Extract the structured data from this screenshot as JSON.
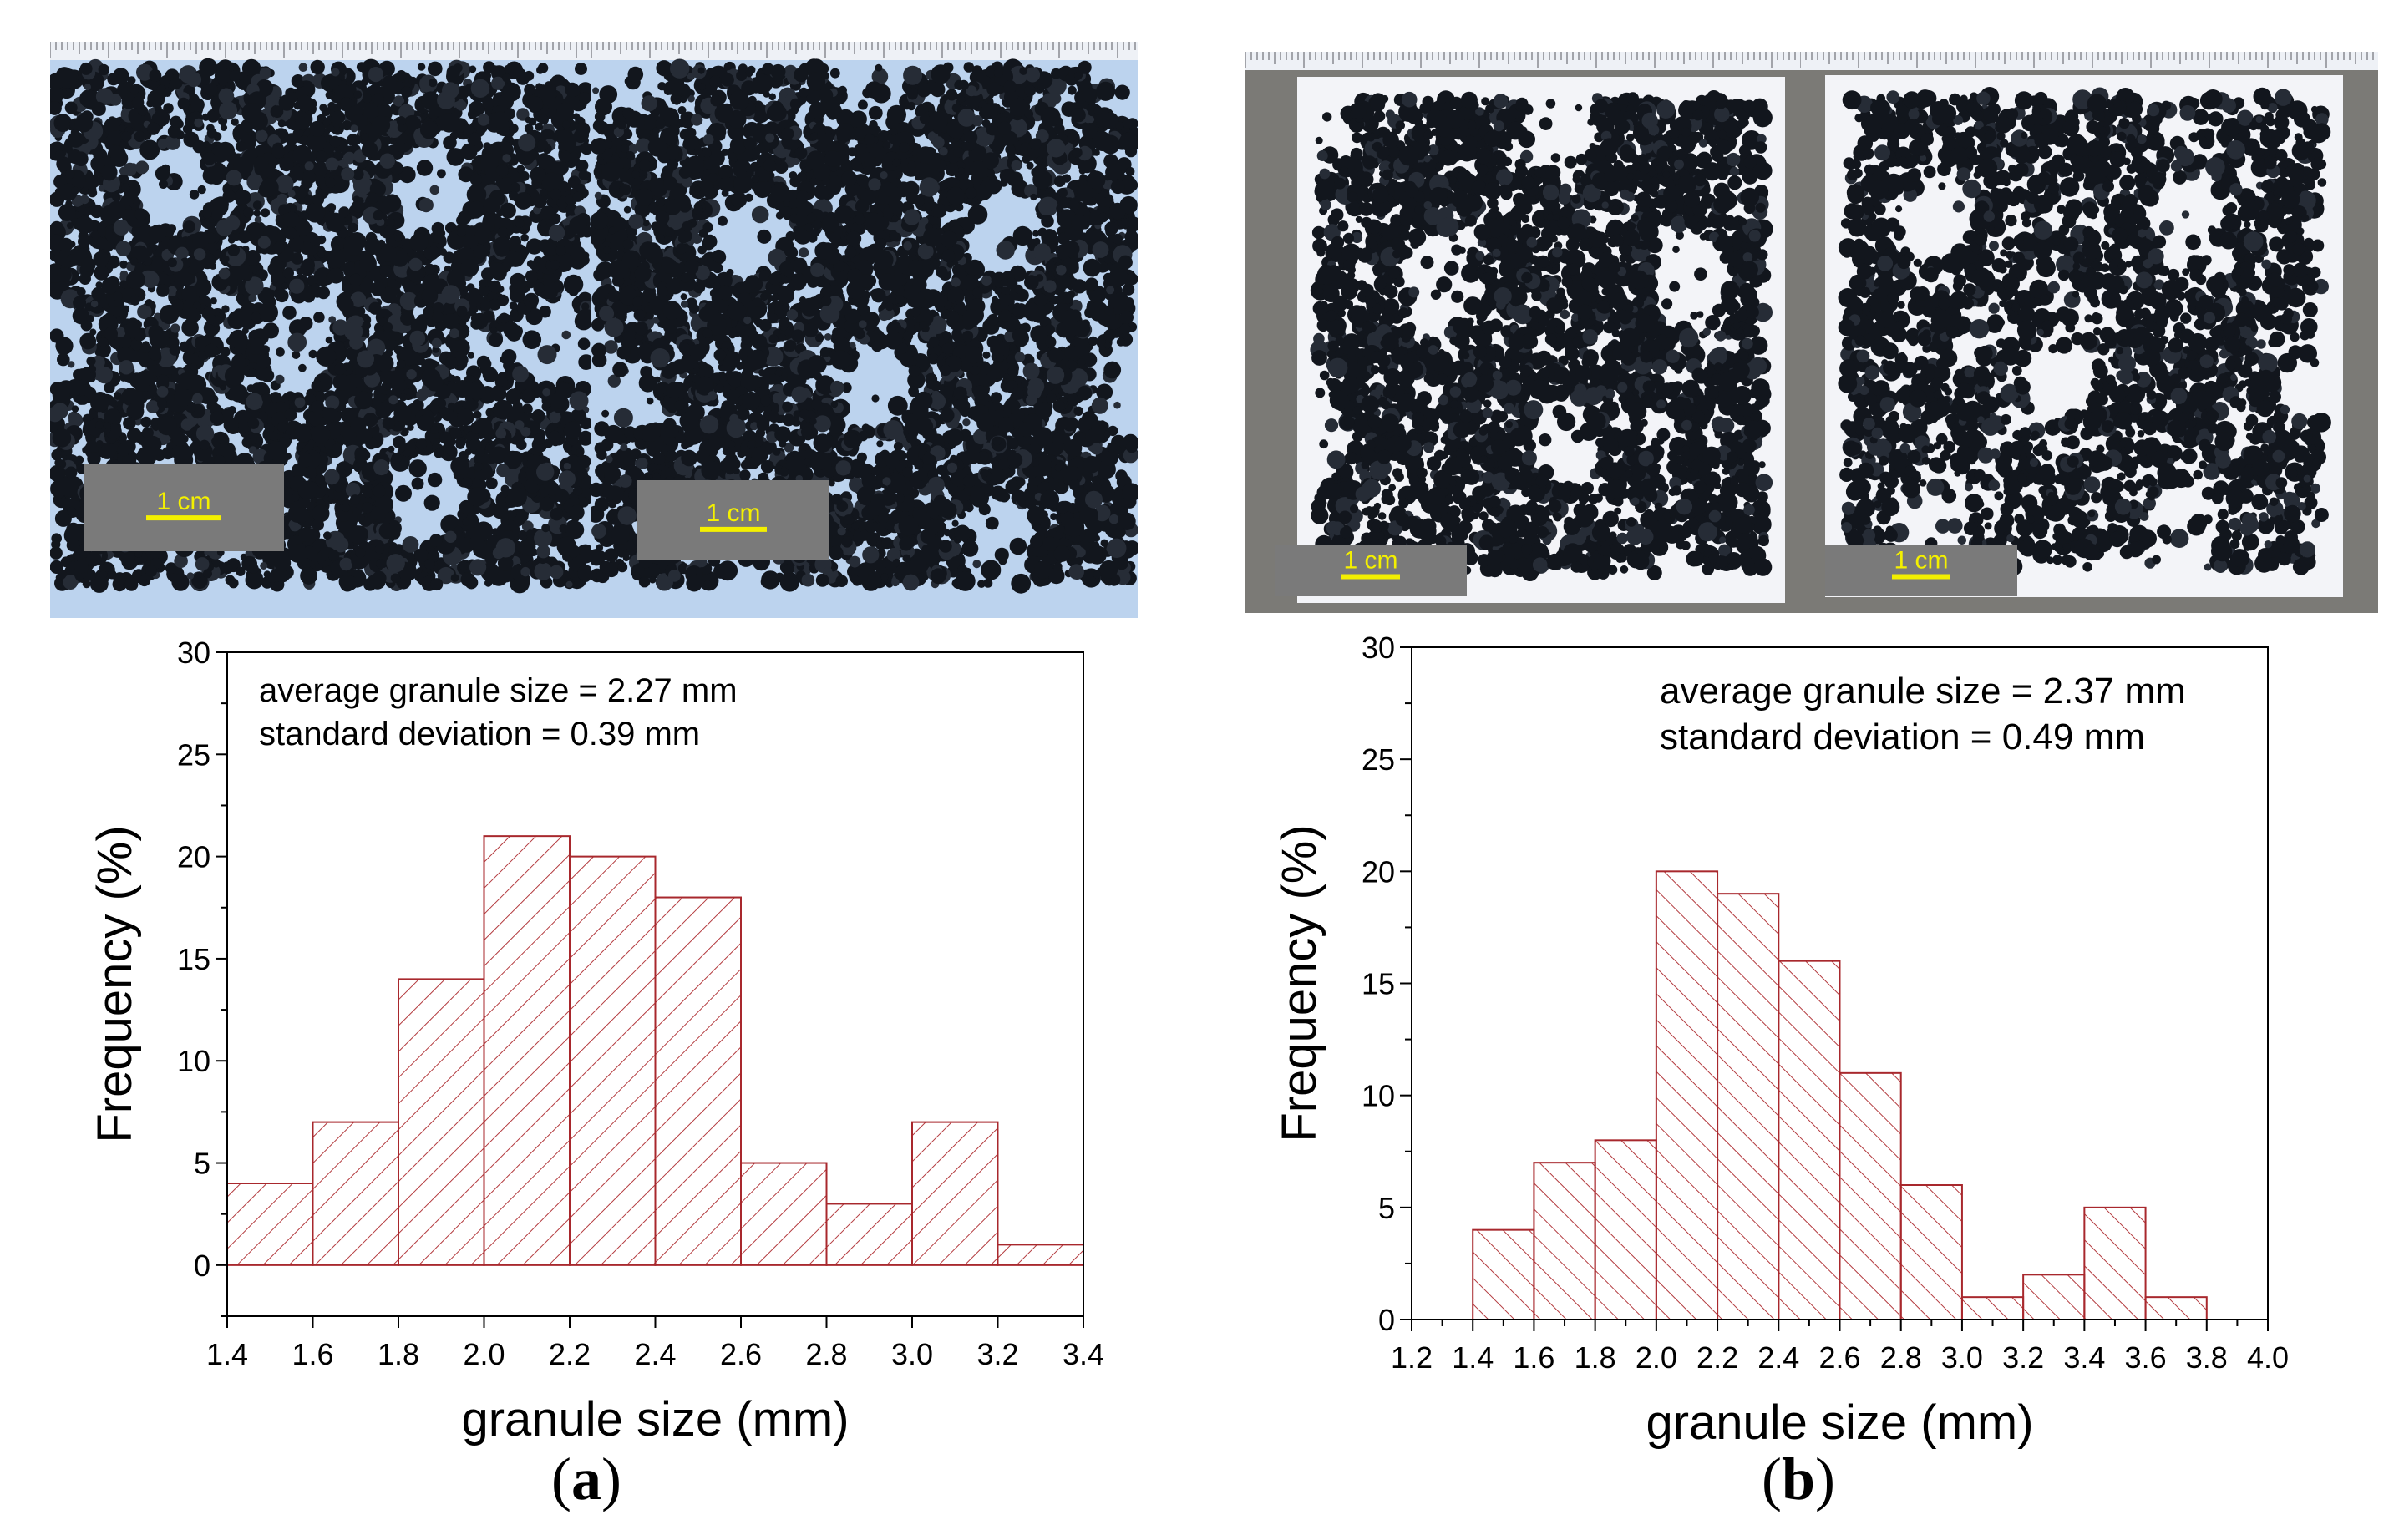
{
  "colors": {
    "bar_stroke": "#a8282d",
    "hatch": "#b33a3e",
    "axis": "#000000",
    "scalebar": "#f4f000",
    "scalebox": "#7a7a7a",
    "photo_bg_a": "#bcd3ee",
    "photo_bg_b": "#7b7a76",
    "paper": "#f3f4f8",
    "granule": "#12161d"
  },
  "panels": [
    {
      "label_open": "(",
      "label_letter": "a",
      "label_close": ")",
      "photos": [
        {
          "scale_text": "1 cm"
        },
        {
          "scale_text": "1 cm"
        }
      ],
      "annotation": [
        "average granule size = 2.27 mm",
        "standard deviation = 0.39 mm"
      ]
    },
    {
      "label_open": "(",
      "label_letter": "b",
      "label_close": ")",
      "photos": [
        {
          "scale_text": "1 cm"
        },
        {
          "scale_text": "1 cm"
        }
      ],
      "annotation": [
        "average granule size = 2.37 mm",
        "standard deviation = 0.49 mm"
      ]
    }
  ],
  "chart_data": [
    {
      "type": "bar",
      "xlabel": "granule size (mm)",
      "ylabel": "Frequency (%)",
      "xlim": [
        1.4,
        3.4
      ],
      "ylim": [
        -2.5,
        30
      ],
      "xticks": [
        "1.4",
        "1.6",
        "1.8",
        "2.0",
        "2.2",
        "2.4",
        "2.6",
        "2.8",
        "3.0",
        "3.2",
        "3.4"
      ],
      "yticks": [
        "0",
        "5",
        "10",
        "15",
        "20",
        "25",
        "30"
      ],
      "bins": [
        [
          1.4,
          1.6
        ],
        [
          1.6,
          1.8
        ],
        [
          1.8,
          2.0
        ],
        [
          2.0,
          2.2
        ],
        [
          2.2,
          2.4
        ],
        [
          2.4,
          2.6
        ],
        [
          2.6,
          2.8
        ],
        [
          2.8,
          3.0
        ],
        [
          3.0,
          3.2
        ],
        [
          3.2,
          3.4
        ]
      ],
      "values": [
        4,
        7,
        14,
        21,
        20,
        18,
        5,
        3,
        7,
        1
      ],
      "hatch": "forward",
      "grid": false
    },
    {
      "type": "bar",
      "xlabel": "granule size (mm)",
      "ylabel": "Frequency (%)",
      "xlim": [
        1.2,
        4.0
      ],
      "ylim": [
        0,
        30
      ],
      "xticks": [
        "1.2",
        "1.4",
        "1.6",
        "1.8",
        "2.0",
        "2.2",
        "2.4",
        "2.6",
        "2.8",
        "3.0",
        "3.2",
        "3.4",
        "3.6",
        "3.8",
        "4.0"
      ],
      "yticks": [
        "0",
        "5",
        "10",
        "15",
        "20",
        "25",
        "30"
      ],
      "bins": [
        [
          1.4,
          1.6
        ],
        [
          1.6,
          1.8
        ],
        [
          1.8,
          2.0
        ],
        [
          2.0,
          2.2
        ],
        [
          2.2,
          2.4
        ],
        [
          2.4,
          2.6
        ],
        [
          2.6,
          2.8
        ],
        [
          2.8,
          3.0
        ],
        [
          3.0,
          3.2
        ],
        [
          3.2,
          3.4
        ],
        [
          3.4,
          3.6
        ],
        [
          3.6,
          3.8
        ]
      ],
      "values": [
        4,
        7,
        8,
        20,
        19,
        16,
        11,
        6,
        1,
        2,
        5,
        1
      ],
      "hatch": "backward",
      "grid": false
    }
  ]
}
